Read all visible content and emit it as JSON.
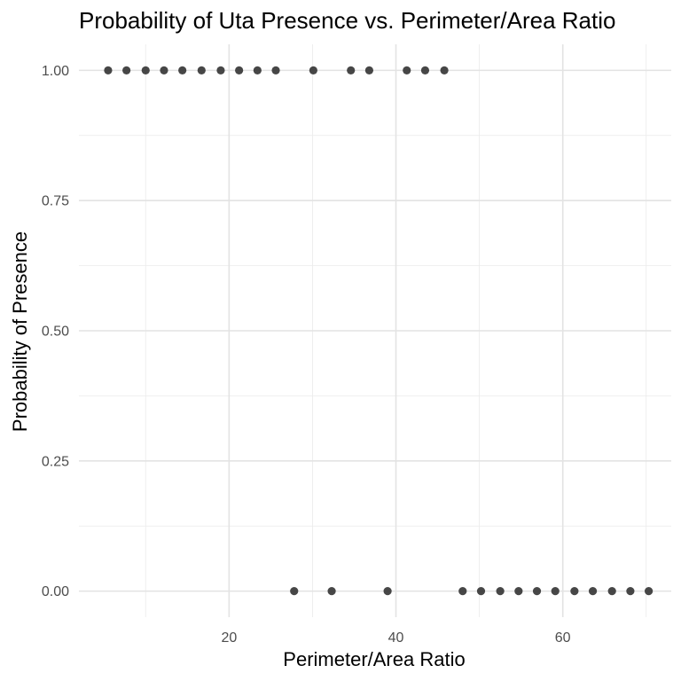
{
  "chart_data": {
    "type": "scatter",
    "title": "Probability of Uta Presence vs. Perimeter/Area Ratio",
    "xlabel": "Perimeter/Area Ratio",
    "ylabel": "Probability of Presence",
    "xlim": [
      2,
      73
    ],
    "ylim": [
      -0.05,
      1.05
    ],
    "x_ticks": [
      20,
      40,
      60
    ],
    "x_tick_labels": [
      "20",
      "40",
      "60"
    ],
    "y_ticks": [
      0,
      0.25,
      0.5,
      0.75,
      1
    ],
    "y_tick_labels": [
      "0.00",
      "0.25",
      "0.50",
      "0.75",
      "1.00"
    ],
    "grid": true,
    "legend": "none",
    "point_color": "#333333",
    "series": [
      {
        "points": [
          {
            "x": 5.5,
            "y": 1
          },
          {
            "x": 7.7,
            "y": 1
          },
          {
            "x": 10.0,
            "y": 1
          },
          {
            "x": 12.2,
            "y": 1
          },
          {
            "x": 14.4,
            "y": 1
          },
          {
            "x": 16.7,
            "y": 1
          },
          {
            "x": 19.0,
            "y": 1
          },
          {
            "x": 21.2,
            "y": 1
          },
          {
            "x": 23.4,
            "y": 1
          },
          {
            "x": 25.6,
            "y": 1
          },
          {
            "x": 30.1,
            "y": 1
          },
          {
            "x": 34.6,
            "y": 1
          },
          {
            "x": 36.8,
            "y": 1
          },
          {
            "x": 41.3,
            "y": 1
          },
          {
            "x": 43.5,
            "y": 1
          },
          {
            "x": 45.8,
            "y": 1
          },
          {
            "x": 27.8,
            "y": 0
          },
          {
            "x": 32.3,
            "y": 0
          },
          {
            "x": 39.0,
            "y": 0
          },
          {
            "x": 48.0,
            "y": 0
          },
          {
            "x": 50.2,
            "y": 0
          },
          {
            "x": 52.5,
            "y": 0
          },
          {
            "x": 54.7,
            "y": 0
          },
          {
            "x": 56.9,
            "y": 0
          },
          {
            "x": 59.1,
            "y": 0
          },
          {
            "x": 61.4,
            "y": 0
          },
          {
            "x": 63.6,
            "y": 0
          },
          {
            "x": 65.9,
            "y": 0
          },
          {
            "x": 68.1,
            "y": 0
          },
          {
            "x": 70.3,
            "y": 0
          }
        ]
      }
    ]
  }
}
